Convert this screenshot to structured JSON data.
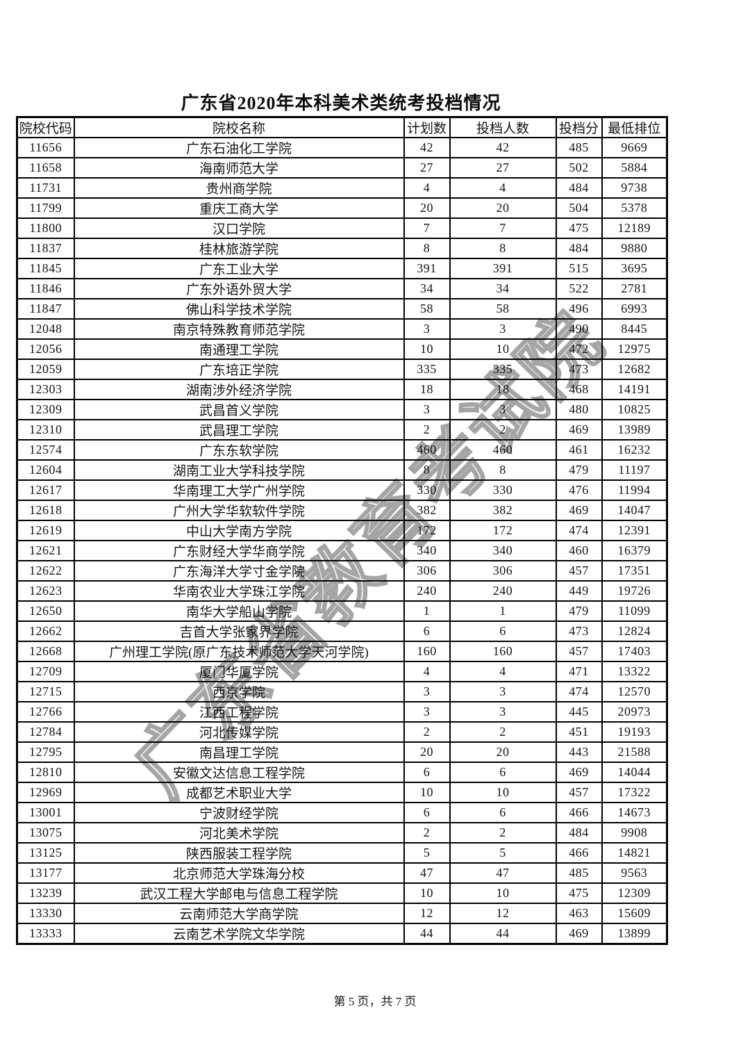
{
  "page": {
    "title": "广东省2020年本科美术类统考投档情况",
    "footer": "第 5 页，共 7 页",
    "watermark": "广东省教育考试院"
  },
  "colors": {
    "text": "#141414",
    "table_border": "#000000",
    "watermark_gray": "#a5a5a5",
    "background": "#ffffff"
  },
  "table": {
    "columns": [
      {
        "key": "code",
        "label": "院校代码"
      },
      {
        "key": "name",
        "label": "院校名称"
      },
      {
        "key": "plan",
        "label": "计划数"
      },
      {
        "key": "count",
        "label": "投档人数"
      },
      {
        "key": "score",
        "label": "投档分"
      },
      {
        "key": "rank",
        "label": "最低排位"
      }
    ],
    "rows": [
      [
        "11656",
        "广东石油化工学院",
        "42",
        "42",
        "485",
        "9669"
      ],
      [
        "11658",
        "海南师范大学",
        "27",
        "27",
        "502",
        "5884"
      ],
      [
        "11731",
        "贵州商学院",
        "4",
        "4",
        "484",
        "9738"
      ],
      [
        "11799",
        "重庆工商大学",
        "20",
        "20",
        "504",
        "5378"
      ],
      [
        "11800",
        "汉口学院",
        "7",
        "7",
        "475",
        "12189"
      ],
      [
        "11837",
        "桂林旅游学院",
        "8",
        "8",
        "484",
        "9880"
      ],
      [
        "11845",
        "广东工业大学",
        "391",
        "391",
        "515",
        "3695"
      ],
      [
        "11846",
        "广东外语外贸大学",
        "34",
        "34",
        "522",
        "2781"
      ],
      [
        "11847",
        "佛山科学技术学院",
        "58",
        "58",
        "496",
        "6993"
      ],
      [
        "12048",
        "南京特殊教育师范学院",
        "3",
        "3",
        "490",
        "8445"
      ],
      [
        "12056",
        "南通理工学院",
        "10",
        "10",
        "472",
        "12975"
      ],
      [
        "12059",
        "广东培正学院",
        "335",
        "335",
        "473",
        "12682"
      ],
      [
        "12303",
        "湖南涉外经济学院",
        "18",
        "18",
        "468",
        "14191"
      ],
      [
        "12309",
        "武昌首义学院",
        "3",
        "3",
        "480",
        "10825"
      ],
      [
        "12310",
        "武昌理工学院",
        "2",
        "2",
        "469",
        "13989"
      ],
      [
        "12574",
        "广东东软学院",
        "460",
        "460",
        "461",
        "16232"
      ],
      [
        "12604",
        "湖南工业大学科技学院",
        "8",
        "8",
        "479",
        "11197"
      ],
      [
        "12617",
        "华南理工大学广州学院",
        "330",
        "330",
        "476",
        "11994"
      ],
      [
        "12618",
        "广州大学华软软件学院",
        "382",
        "382",
        "469",
        "14047"
      ],
      [
        "12619",
        "中山大学南方学院",
        "172",
        "172",
        "474",
        "12391"
      ],
      [
        "12621",
        "广东财经大学华商学院",
        "340",
        "340",
        "460",
        "16379"
      ],
      [
        "12622",
        "广东海洋大学寸金学院",
        "306",
        "306",
        "457",
        "17351"
      ],
      [
        "12623",
        "华南农业大学珠江学院",
        "240",
        "240",
        "449",
        "19726"
      ],
      [
        "12650",
        "南华大学船山学院",
        "1",
        "1",
        "479",
        "11099"
      ],
      [
        "12662",
        "吉首大学张家界学院",
        "6",
        "6",
        "473",
        "12824"
      ],
      [
        "12668",
        "广州理工学院(原广东技术师范大学天河学院)",
        "160",
        "160",
        "457",
        "17403"
      ],
      [
        "12709",
        "厦门华厦学院",
        "4",
        "4",
        "471",
        "13322"
      ],
      [
        "12715",
        "西京学院",
        "3",
        "3",
        "474",
        "12570"
      ],
      [
        "12766",
        "江西工程学院",
        "3",
        "3",
        "445",
        "20973"
      ],
      [
        "12784",
        "河北传媒学院",
        "2",
        "2",
        "451",
        "19193"
      ],
      [
        "12795",
        "南昌理工学院",
        "20",
        "20",
        "443",
        "21588"
      ],
      [
        "12810",
        "安徽文达信息工程学院",
        "6",
        "6",
        "469",
        "14044"
      ],
      [
        "12969",
        "成都艺术职业大学",
        "10",
        "10",
        "457",
        "17322"
      ],
      [
        "13001",
        "宁波财经学院",
        "6",
        "6",
        "466",
        "14673"
      ],
      [
        "13075",
        "河北美术学院",
        "2",
        "2",
        "484",
        "9908"
      ],
      [
        "13125",
        "陕西服装工程学院",
        "5",
        "5",
        "466",
        "14821"
      ],
      [
        "13177",
        "北京师范大学珠海分校",
        "47",
        "47",
        "485",
        "9563"
      ],
      [
        "13239",
        "武汉工程大学邮电与信息工程学院",
        "10",
        "10",
        "475",
        "12309"
      ],
      [
        "13330",
        "云南师范大学商学院",
        "12",
        "12",
        "463",
        "15609"
      ],
      [
        "13333",
        "云南艺术学院文华学院",
        "44",
        "44",
        "469",
        "13899"
      ]
    ]
  }
}
